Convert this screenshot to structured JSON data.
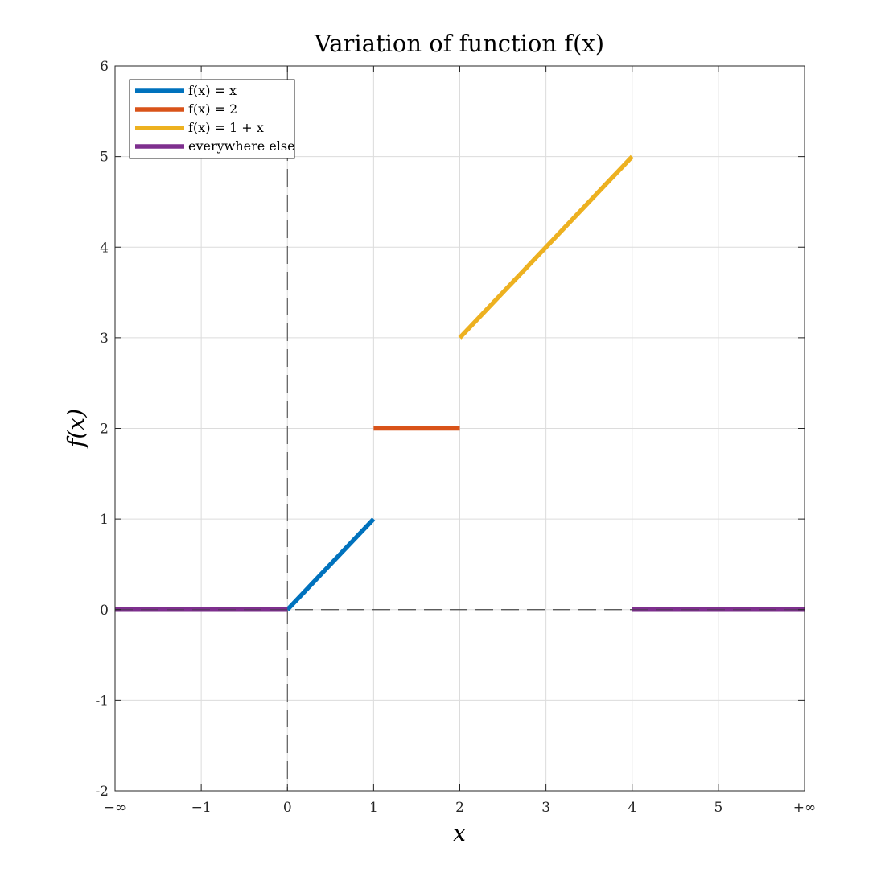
{
  "chart_data": {
    "type": "line",
    "title": "Variation of function f(x)",
    "xlabel": "x",
    "ylabel": "f(x)",
    "xlim": [
      -1,
      7
    ],
    "ylim": [
      -2,
      6
    ],
    "grid": true,
    "legend_position": "top-left",
    "x_ticks": [
      {
        "value": -1,
        "label": "−∞"
      },
      {
        "value": 0,
        "label": "−1"
      },
      {
        "value": 1,
        "label": "0"
      },
      {
        "value": 2,
        "label": "1"
      },
      {
        "value": 3,
        "label": "2"
      },
      {
        "value": 4,
        "label": "3"
      },
      {
        "value": 5,
        "label": "4"
      },
      {
        "value": 6,
        "label": "5"
      },
      {
        "value": 7,
        "label": "+∞"
      }
    ],
    "y_ticks": [
      {
        "value": 6,
        "label": "6"
      },
      {
        "value": 5,
        "label": "5"
      },
      {
        "value": 4,
        "label": "4"
      },
      {
        "value": 3,
        "label": "3"
      },
      {
        "value": 2,
        "label": "2"
      },
      {
        "value": 1,
        "label": "1"
      },
      {
        "value": 0,
        "label": "0"
      },
      {
        "value": -1,
        "label": "-1"
      },
      {
        "value": -2,
        "label": "-2"
      }
    ],
    "series": [
      {
        "name": "f(x) = x",
        "color": "#0072BD",
        "segments": [
          [
            [
              1,
              0
            ],
            [
              2,
              1
            ]
          ]
        ]
      },
      {
        "name": "f(x) = 2",
        "color": "#D95319",
        "segments": [
          [
            [
              2,
              2
            ],
            [
              3,
              2
            ]
          ]
        ]
      },
      {
        "name": "f(x) = 1 + x",
        "color": "#EDB120",
        "segments": [
          [
            [
              3,
              3
            ],
            [
              5,
              5
            ]
          ]
        ]
      },
      {
        "name": "everywhere else",
        "color": "#7E2F8E",
        "segments": [
          [
            [
              -1,
              0
            ],
            [
              1,
              0
            ]
          ],
          [
            [
              5,
              0
            ],
            [
              7,
              0
            ]
          ]
        ]
      }
    ],
    "reference_lines": [
      {
        "orientation": "vertical",
        "at": 1,
        "style": "dashed",
        "color": "#404040"
      },
      {
        "orientation": "horizontal",
        "at": 0,
        "style": "dashed",
        "color": "#404040"
      }
    ]
  }
}
